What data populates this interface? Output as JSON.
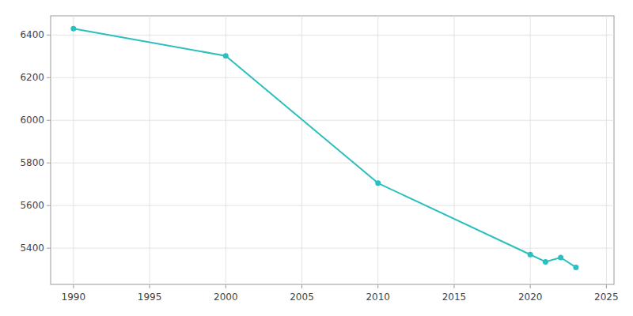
{
  "chart_data": {
    "type": "line",
    "x": [
      1990,
      2000,
      2010,
      2020,
      2021,
      2022,
      2023
    ],
    "values": [
      6430,
      6302,
      5705,
      5370,
      5336,
      5356,
      5310
    ],
    "color": "#2bbfbf",
    "marker": "circle",
    "xlim": [
      1988.5,
      2025.5
    ],
    "ylim": [
      5230,
      6490
    ],
    "xticks": [
      1990,
      1995,
      2000,
      2005,
      2010,
      2015,
      2020,
      2025
    ],
    "yticks": [
      5400,
      5600,
      5800,
      6000,
      6200,
      6400
    ],
    "grid": true
  }
}
